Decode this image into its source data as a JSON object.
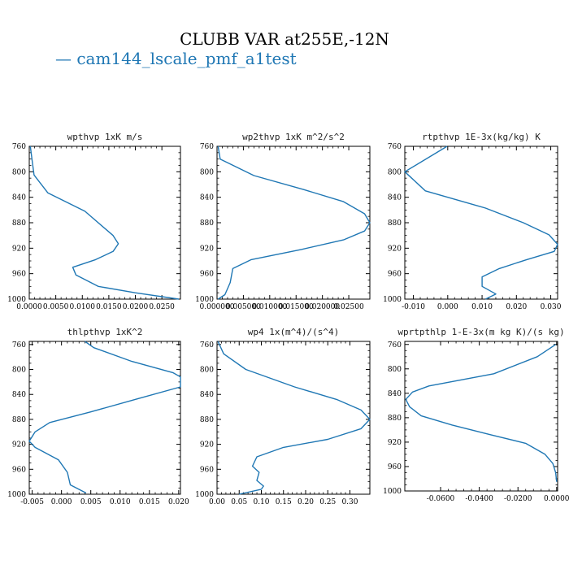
{
  "title": "CLUBB VAR at255E,-12N",
  "legend": {
    "dash": "—",
    "label": "cam144_lscale_pmf_a1test",
    "color": "#1f77b4"
  },
  "chart_data": [
    {
      "type": "line",
      "title": "wpthvp  1xK m/s",
      "xlim": [
        0,
        0.0285
      ],
      "ylim": [
        760,
        1000
      ],
      "y_inverted": true,
      "xticks": [
        0,
        0.005,
        0.01,
        0.015,
        0.02,
        0.025
      ],
      "xtick_labels": [
        "0.0000",
        "0.0050",
        "0.0100",
        "0.0150",
        "0.0200",
        "0.0250"
      ],
      "yticks": [
        760,
        800,
        840,
        880,
        920,
        960,
        1000
      ],
      "ytick_labels": [
        "760",
        "800",
        "840",
        "880",
        "920",
        "960",
        "1000"
      ],
      "series": [
        {
          "color": "#1f77b4",
          "x": [
            0.0002,
            0.0005,
            0.0009,
            0.0035,
            0.0105,
            0.0158,
            0.0168,
            0.0158,
            0.0125,
            0.0082,
            0.0088,
            0.013,
            0.02,
            0.0282
          ],
          "y": [
            760,
            780,
            805,
            833,
            862,
            900,
            913,
            925,
            938,
            950,
            962,
            980,
            990,
            1000
          ]
        }
      ]
    },
    {
      "type": "line",
      "title": "wp2thvp  1xK m^2/s^2",
      "xlim": [
        0,
        0.029
      ],
      "ylim": [
        760,
        1000
      ],
      "y_inverted": true,
      "xticks": [
        0,
        0.005,
        0.01,
        0.015,
        0.02,
        0.025
      ],
      "xtick_labels": [
        "0.000000",
        "0.005000",
        "0.010000",
        "0.015000",
        "0.020000",
        "0.02500"
      ],
      "yticks": [
        760,
        800,
        840,
        880,
        920,
        960,
        1000
      ],
      "ytick_labels": [
        "760",
        "800",
        "840",
        "880",
        "920",
        "960",
        "1000"
      ],
      "series": [
        {
          "color": "#1f77b4",
          "x": [
            0.0002,
            0.0006,
            0.007,
            0.0165,
            0.024,
            0.028,
            0.029,
            0.028,
            0.024,
            0.016,
            0.0065,
            0.003,
            0.0025,
            0.0015,
            0.0002
          ],
          "y": [
            760,
            780,
            806,
            828,
            847,
            866,
            880,
            893,
            907,
            922,
            938,
            952,
            974,
            993,
            1000
          ]
        }
      ]
    },
    {
      "type": "line",
      "title": "rtpthvp  1E-3x(kg/kg) K",
      "xlim": [
        -0.0125,
        0.032
      ],
      "ylim": [
        760,
        1000
      ],
      "y_inverted": true,
      "xticks": [
        -0.01,
        0,
        0.01,
        0.02,
        0.03
      ],
      "xtick_labels": [
        "-0.010",
        "0.000",
        "0.010",
        "0.020",
        "0.030"
      ],
      "yticks": [
        760,
        800,
        840,
        880,
        920,
        960,
        1000
      ],
      "ytick_labels": [
        "760",
        "800",
        "840",
        "880",
        "920",
        "960",
        "1000"
      ],
      "series": [
        {
          "color": "#1f77b4",
          "x": [
            -0.0002,
            -0.0125,
            -0.0065,
            0.011,
            0.022,
            0.0295,
            0.0322,
            0.031,
            0.023,
            0.015,
            0.01,
            0.01,
            0.014,
            0.011
          ],
          "y": [
            755,
            800,
            830,
            857,
            880,
            899,
            914,
            925,
            938,
            952,
            965,
            980,
            992,
            1000
          ]
        }
      ]
    },
    {
      "type": "line",
      "title": "thlpthvp  1xK^2",
      "xlim": [
        -0.0055,
        0.0203
      ],
      "ylim": [
        755,
        1000
      ],
      "y_inverted": true,
      "xticks": [
        -0.005,
        0,
        0.005,
        0.01,
        0.015,
        0.02
      ],
      "xtick_labels": [
        "-0.005",
        "0.000",
        "0.005",
        "0.010",
        "0.015",
        "0.020"
      ],
      "yticks": [
        760,
        800,
        840,
        880,
        920,
        960,
        1000
      ],
      "ytick_labels": [
        "760",
        "800",
        "840",
        "880",
        "920",
        "960",
        "1000"
      ],
      "series": [
        {
          "color": "#1f77b4",
          "x": [
            0.004,
            0.0055,
            0.012,
            0.019,
            0.0203,
            0.0203,
            0.013,
            0.005,
            -0.002,
            -0.0045,
            -0.0055,
            -0.0045,
            -0.0005,
            0.001,
            0.0015,
            0.0042
          ],
          "y": [
            755,
            765,
            787,
            805,
            812,
            828,
            847,
            868,
            885,
            900,
            915,
            925,
            945,
            965,
            985,
            998
          ]
        }
      ]
    },
    {
      "type": "line",
      "title": "wp4  1x(m^4)/(s^4)",
      "xlim": [
        0,
        0.345
      ],
      "ylim": [
        755,
        1000
      ],
      "y_inverted": true,
      "xticks": [
        0,
        0.05,
        0.1,
        0.15,
        0.2,
        0.25,
        0.3
      ],
      "xtick_labels": [
        "0.00",
        "0.05",
        "0.10",
        "0.15",
        "0.20",
        "0.25",
        "0.30"
      ],
      "yticks": [
        760,
        800,
        840,
        880,
        920,
        960,
        1000
      ],
      "ytick_labels": [
        "760",
        "800",
        "840",
        "880",
        "920",
        "960",
        "1000"
      ],
      "series": [
        {
          "color": "#1f77b4",
          "x": [
            0.002,
            0.015,
            0.065,
            0.175,
            0.27,
            0.325,
            0.345,
            0.325,
            0.25,
            0.15,
            0.09,
            0.08,
            0.095,
            0.09,
            0.105,
            0.1,
            0.05
          ],
          "y": [
            755,
            775,
            800,
            828,
            848,
            865,
            880,
            895,
            912,
            925,
            940,
            955,
            965,
            978,
            987,
            992,
            1000
          ]
        }
      ]
    },
    {
      "type": "line",
      "title": "wprtpthlp  1-E-3x(m kg K)/(s kg)",
      "xlim": [
        -0.0785,
        0.0005
      ],
      "ylim": [
        755,
        1000
      ],
      "y_inverted": true,
      "xticks": [
        -0.06,
        -0.04,
        -0.02,
        0
      ],
      "xtick_labels": [
        "-0.0600",
        "-0.0400",
        "-0.0200",
        "0.0000"
      ],
      "yticks": [
        760,
        800,
        840,
        880,
        920,
        960,
        1000
      ],
      "ytick_labels": [
        "760",
        "800",
        "840",
        "880",
        "920",
        "960",
        "1000"
      ],
      "series": [
        {
          "color": "#1f77b4",
          "x": [
            -0.0005,
            -0.01,
            -0.0325,
            -0.066,
            -0.0745,
            -0.078,
            -0.076,
            -0.07,
            -0.054,
            -0.034,
            -0.016,
            -0.006,
            -0.002,
            -0.0005,
            0.0
          ],
          "y": [
            760,
            780,
            808,
            828,
            838,
            850,
            862,
            877,
            892,
            908,
            922,
            940,
            955,
            970,
            985
          ]
        }
      ]
    }
  ]
}
